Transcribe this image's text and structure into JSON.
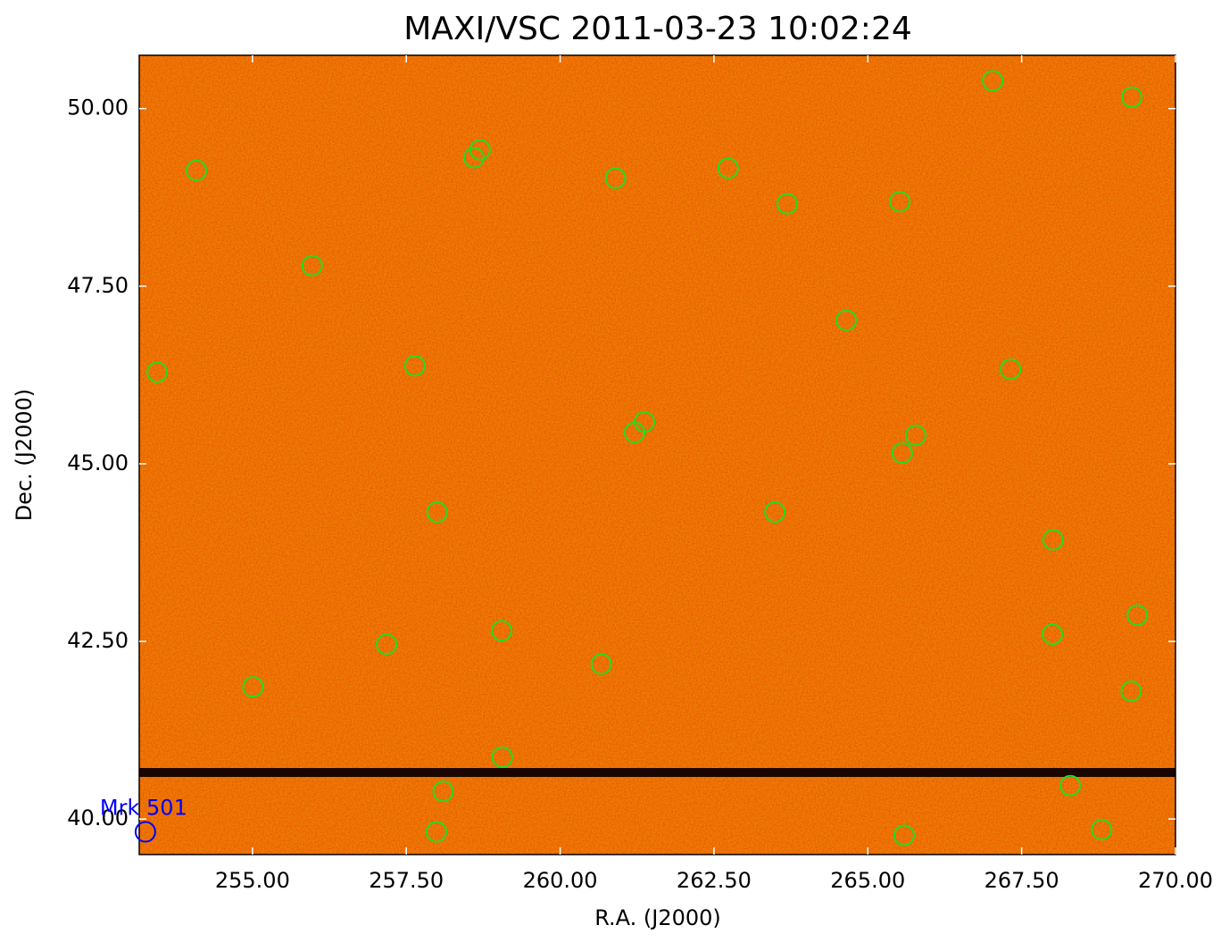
{
  "chart_data": {
    "type": "scatter",
    "title": "MAXI/VSC 2011-03-23 10:02:24",
    "x_label": "R.A. (J2000)",
    "y_label": "Dec. (J2000)",
    "xlim": [
      253.16,
      270.0
    ],
    "ylim": [
      39.5,
      50.75
    ],
    "xticks": [
      {
        "value": 255,
        "label": "255.00"
      },
      {
        "value": 257.5,
        "label": "257.50"
      },
      {
        "value": 260,
        "label": "260.00"
      },
      {
        "value": 262.5,
        "label": "262.50"
      },
      {
        "value": 265,
        "label": "265.00"
      },
      {
        "value": 267.5,
        "label": "267.50"
      },
      {
        "value": 270,
        "label": "270.00"
      }
    ],
    "yticks": [
      {
        "value": 40,
        "label": "40.00"
      },
      {
        "value": 42.5,
        "label": "42.50"
      },
      {
        "value": 45,
        "label": "45.00"
      },
      {
        "value": 47.5,
        "label": "47.50"
      },
      {
        "value": 50,
        "label": "50.00"
      }
    ],
    "color": "#22dd22",
    "x": [
      254.09,
      255.97,
      253.45,
      257.64,
      258.6,
      258.7,
      260.9,
      262.73,
      263.69,
      265.52,
      264.65,
      267.03,
      269.29,
      267.32,
      261.21,
      261.37,
      265.56,
      265.78,
      258.0,
      263.49,
      268.01,
      257.18,
      259.05,
      260.67,
      255.01,
      268.0,
      269.38,
      269.28,
      259.06,
      258.1,
      257.99,
      268.29,
      265.59,
      268.8
    ],
    "values": [
      49.13,
      47.79,
      46.29,
      46.38,
      49.31,
      49.42,
      49.02,
      49.16,
      48.66,
      48.69,
      47.02,
      50.39,
      50.16,
      46.33,
      45.44,
      45.59,
      45.15,
      45.4,
      44.32,
      44.32,
      43.93,
      42.46,
      42.65,
      42.18,
      41.86,
      42.6,
      42.87,
      41.8,
      40.87,
      40.39,
      39.82,
      40.47,
      39.77,
      39.85
    ],
    "annotation": {
      "text": "Mrk 501",
      "x": 253.26,
      "y": 39.82,
      "color": "#0000ff"
    }
  }
}
